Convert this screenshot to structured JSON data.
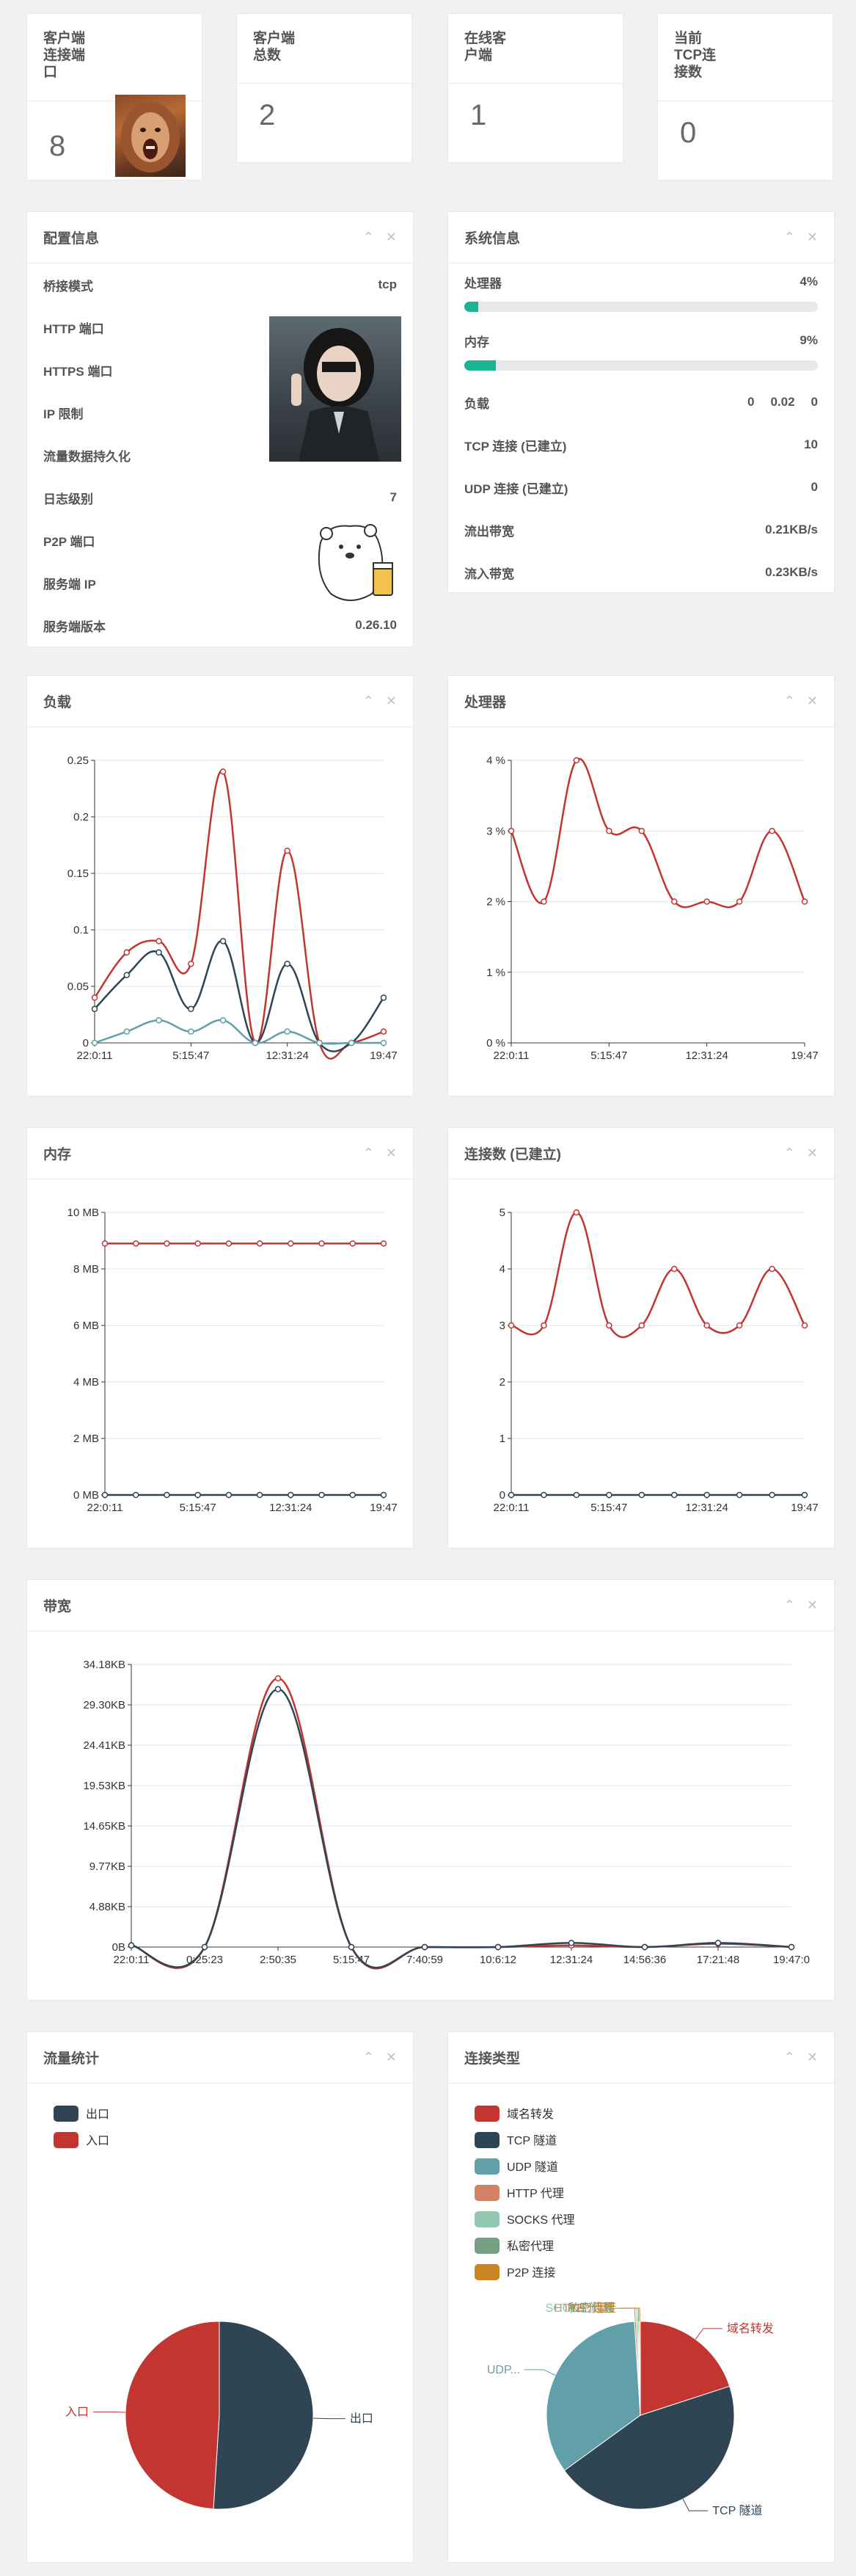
{
  "stats": [
    {
      "label": "客户端\n连接端\n口",
      "value": "8"
    },
    {
      "label": "客户端\n总数",
      "value": "2"
    },
    {
      "label": "在线客\n户端",
      "value": "1"
    },
    {
      "label": "当前\nTCP连\n接数",
      "value": "0"
    }
  ],
  "config": {
    "title": "配置信息",
    "rows": [
      {
        "k": "桥接模式",
        "v": "tcp"
      },
      {
        "k": "HTTP 端口",
        "v": ""
      },
      {
        "k": "HTTPS 端口",
        "v": ""
      },
      {
        "k": "IP 限制",
        "v": ""
      },
      {
        "k": "流量数据持久化",
        "v": ""
      },
      {
        "k": "日志级别",
        "v": "7"
      },
      {
        "k": "P2P 端口",
        "v": ""
      },
      {
        "k": "服务端 IP",
        "v": ""
      },
      {
        "k": "服务端版本",
        "v": "0.26.10"
      }
    ]
  },
  "system": {
    "title": "系统信息",
    "cpu_label": "处理器",
    "cpu_value": "4%",
    "cpu_pct": 4,
    "mem_label": "内存",
    "mem_value": "9%",
    "mem_pct": 9,
    "load_label": "负载",
    "load_values": [
      "0",
      "0.02",
      "0"
    ],
    "rows": [
      {
        "k": "TCP 连接 (已建立)",
        "v": "10"
      },
      {
        "k": "UDP 连接 (已建立)",
        "v": "0"
      },
      {
        "k": "流出带宽",
        "v": "0.21KB/s"
      },
      {
        "k": "流入带宽",
        "v": "0.23KB/s"
      }
    ]
  },
  "panels": {
    "load": "负载",
    "cpu": "处理器",
    "mem": "内存",
    "conn": "连接数 (已建立)",
    "bw": "带宽",
    "traffic": "流量统计",
    "conntype": "连接类型"
  },
  "icons": {
    "collapse": "chevron-up-icon",
    "close": "close-icon"
  },
  "colors": {
    "red": "#c23531",
    "navy": "#2f4554",
    "teal": "#61a0a8",
    "green": "#1ab394"
  },
  "chart_data": [
    {
      "id": "load",
      "type": "line",
      "x_ticks": [
        "22:0:11",
        "5:15:47",
        "12:31:24",
        "19:47"
      ],
      "y_ticks": [
        "0",
        "0.05",
        "0.1",
        "0.15",
        "0.2",
        "0.25"
      ],
      "ylim": [
        0,
        0.25
      ],
      "series": [
        {
          "color": "#c23531",
          "values": [
            0.04,
            0.08,
            0.09,
            0.07,
            0.24,
            0,
            0.17,
            0,
            0,
            0.01
          ]
        },
        {
          "color": "#2f4554",
          "values": [
            0.03,
            0.06,
            0.08,
            0.03,
            0.09,
            0,
            0.07,
            0,
            0,
            0.04
          ]
        },
        {
          "color": "#61a0a8",
          "values": [
            0,
            0.01,
            0.02,
            0.01,
            0.02,
            0,
            0.01,
            0,
            0,
            0
          ]
        }
      ]
    },
    {
      "id": "cpu",
      "type": "line",
      "x_ticks": [
        "22:0:11",
        "5:15:47",
        "12:31:24",
        "19:47"
      ],
      "y_ticks": [
        "0 %",
        "1 %",
        "2 %",
        "3 %",
        "4 %"
      ],
      "ylim": [
        0,
        4
      ],
      "series": [
        {
          "color": "#c23531",
          "values": [
            3,
            2,
            4,
            3,
            3,
            2,
            2,
            2,
            3,
            2
          ]
        }
      ]
    },
    {
      "id": "mem",
      "type": "line",
      "x_ticks": [
        "22:0:11",
        "5:15:47",
        "12:31:24",
        "19:47"
      ],
      "y_ticks": [
        "0 MB",
        "2 MB",
        "4 MB",
        "6 MB",
        "8 MB",
        "10 MB"
      ],
      "ylim": [
        0,
        10
      ],
      "series": [
        {
          "color": "#c23531",
          "values": [
            8.9,
            8.9,
            8.9,
            8.9,
            8.9,
            8.9,
            8.9,
            8.9,
            8.9,
            8.9
          ]
        },
        {
          "color": "#2f4554",
          "values": [
            0,
            0,
            0,
            0,
            0,
            0,
            0,
            0,
            0,
            0
          ]
        }
      ]
    },
    {
      "id": "conn",
      "type": "line",
      "x_ticks": [
        "22:0:11",
        "5:15:47",
        "12:31:24",
        "19:47"
      ],
      "y_ticks": [
        "0",
        "1",
        "2",
        "3",
        "4",
        "5"
      ],
      "ylim": [
        0,
        5
      ],
      "series": [
        {
          "color": "#c23531",
          "values": [
            3,
            3,
            5,
            3,
            3,
            4,
            3,
            3,
            4,
            3
          ]
        },
        {
          "color": "#2f4554",
          "values": [
            0,
            0,
            0,
            0,
            0,
            0,
            0,
            0,
            0,
            0
          ]
        }
      ]
    },
    {
      "id": "bw",
      "type": "line",
      "x_ticks": [
        "22:0:11",
        "0:25:23",
        "2:50:35",
        "5:15:47",
        "7:40:59",
        "10:6:12",
        "12:31:24",
        "14:56:36",
        "17:21:48",
        "19:47:0"
      ],
      "y_ticks": [
        "0B",
        "4.88KB",
        "9.77KB",
        "14.65KB",
        "19.53KB",
        "24.41KB",
        "29.30KB",
        "34.18KB"
      ],
      "ylim": [
        0,
        34.18
      ],
      "series": [
        {
          "color": "#c23531",
          "values": [
            0.2,
            0,
            32.5,
            0,
            0,
            0,
            0.2,
            0,
            0.4,
            0
          ]
        },
        {
          "color": "#2f4554",
          "values": [
            0.2,
            0,
            31.2,
            0,
            0,
            0,
            0.5,
            0,
            0.5,
            0
          ]
        }
      ]
    },
    {
      "id": "traffic",
      "type": "pie",
      "legend": [
        "出口",
        "入口"
      ],
      "colors": [
        "#2f4554",
        "#c23531"
      ],
      "values": [
        51,
        49
      ],
      "labels": [
        "出口",
        "入口"
      ]
    },
    {
      "id": "conntype",
      "type": "pie",
      "legend": [
        "域名转发",
        "TCP 隧道",
        "UDP 隧道",
        "HTTP 代理",
        "SOCKS 代理",
        "私密代理",
        "P2P 连接"
      ],
      "colors": [
        "#c23531",
        "#2f4554",
        "#61a0a8",
        "#d48265",
        "#91c7ae",
        "#749f83",
        "#ca8622"
      ],
      "values": [
        20,
        45,
        34,
        0.3,
        0.3,
        0.2,
        0.2
      ],
      "labels": [
        "域名转发",
        "TCP 隧道",
        "UDP...",
        "HTTP 代理",
        "SOCKS 代理",
        "私密代理",
        "P2P 连接"
      ]
    }
  ]
}
